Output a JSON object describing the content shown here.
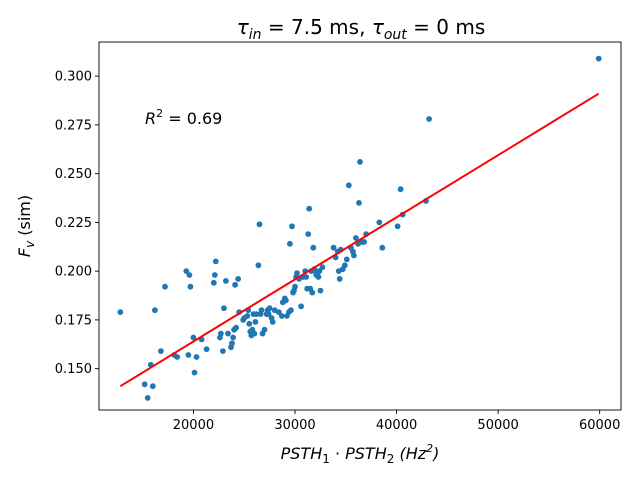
{
  "chart_data": {
    "type": "scatter",
    "title": {
      "prefix": "τ",
      "sub1": "in",
      "mid": " = 7.5 ms, ",
      "prefix2": "τ",
      "sub2": "out",
      "suffix": " = 0 ms"
    },
    "xlabel": {
      "a": "PSTH",
      "a_sub": "1",
      "dot": " · ",
      "b": "PSTH",
      "b_sub": "2",
      "unit_open": " (Hz",
      "unit_sup": "2",
      "unit_close": ")"
    },
    "ylabel": {
      "main": "F",
      "sub": "v",
      "rest": " (sim)"
    },
    "annotation": {
      "main": "R",
      "sup": "2",
      "rest": " = 0.69"
    },
    "xlim": [
      10700,
      62100
    ],
    "ylim": [
      0.1288,
      0.3175
    ],
    "xticks": [
      20000,
      30000,
      40000,
      50000,
      60000
    ],
    "yticks": [
      0.15,
      0.175,
      0.2,
      0.225,
      0.25,
      0.275,
      0.3
    ],
    "grid": false,
    "point_color": "#1f77b4",
    "line_color": "#ff0000",
    "fit_line": {
      "x": [
        12800,
        59900
      ],
      "y": [
        0.141,
        0.291
      ]
    },
    "points": [
      [
        12800,
        0.179
      ],
      [
        15200,
        0.142
      ],
      [
        15500,
        0.135
      ],
      [
        15800,
        0.152
      ],
      [
        16000,
        0.141
      ],
      [
        16200,
        0.18
      ],
      [
        16800,
        0.159
      ],
      [
        17200,
        0.192
      ],
      [
        18100,
        0.157
      ],
      [
        18400,
        0.156
      ],
      [
        19300,
        0.2
      ],
      [
        19500,
        0.157
      ],
      [
        19600,
        0.198
      ],
      [
        19700,
        0.192
      ],
      [
        20000,
        0.166
      ],
      [
        20100,
        0.148
      ],
      [
        20300,
        0.156
      ],
      [
        20800,
        0.165
      ],
      [
        21300,
        0.16
      ],
      [
        22000,
        0.194
      ],
      [
        22100,
        0.198
      ],
      [
        22200,
        0.205
      ],
      [
        22600,
        0.166
      ],
      [
        22700,
        0.168
      ],
      [
        22900,
        0.159
      ],
      [
        23000,
        0.181
      ],
      [
        23200,
        0.195
      ],
      [
        23400,
        0.168
      ],
      [
        23700,
        0.161
      ],
      [
        23800,
        0.163
      ],
      [
        23900,
        0.166
      ],
      [
        24000,
        0.17
      ],
      [
        24100,
        0.193
      ],
      [
        24200,
        0.171
      ],
      [
        24400,
        0.196
      ],
      [
        24500,
        0.179
      ],
      [
        24900,
        0.175
      ],
      [
        25000,
        0.176
      ],
      [
        25300,
        0.177
      ],
      [
        25400,
        0.18
      ],
      [
        25500,
        0.173
      ],
      [
        25600,
        0.169
      ],
      [
        25700,
        0.167
      ],
      [
        25800,
        0.17
      ],
      [
        25900,
        0.178
      ],
      [
        26000,
        0.168
      ],
      [
        26100,
        0.174
      ],
      [
        26200,
        0.178
      ],
      [
        26400,
        0.203
      ],
      [
        26500,
        0.224
      ],
      [
        26600,
        0.178
      ],
      [
        26700,
        0.18
      ],
      [
        26800,
        0.168
      ],
      [
        27000,
        0.17
      ],
      [
        27200,
        0.178
      ],
      [
        27300,
        0.18
      ],
      [
        27400,
        0.178
      ],
      [
        27500,
        0.181
      ],
      [
        27700,
        0.176
      ],
      [
        27800,
        0.174
      ],
      [
        28000,
        0.18
      ],
      [
        28400,
        0.179
      ],
      [
        28700,
        0.177
      ],
      [
        28800,
        0.184
      ],
      [
        29000,
        0.186
      ],
      [
        29100,
        0.185
      ],
      [
        29200,
        0.177
      ],
      [
        29400,
        0.179
      ],
      [
        29500,
        0.214
      ],
      [
        29600,
        0.18
      ],
      [
        29700,
        0.223
      ],
      [
        29800,
        0.189
      ],
      [
        29900,
        0.19
      ],
      [
        30000,
        0.192
      ],
      [
        30100,
        0.197
      ],
      [
        30200,
        0.199
      ],
      [
        30400,
        0.196
      ],
      [
        30600,
        0.182
      ],
      [
        30800,
        0.197
      ],
      [
        31000,
        0.2
      ],
      [
        31100,
        0.197
      ],
      [
        31200,
        0.191
      ],
      [
        31300,
        0.219
      ],
      [
        31400,
        0.232
      ],
      [
        31500,
        0.191
      ],
      [
        31600,
        0.2
      ],
      [
        31700,
        0.189
      ],
      [
        31800,
        0.212
      ],
      [
        31900,
        0.201
      ],
      [
        32000,
        0.2
      ],
      [
        32100,
        0.198
      ],
      [
        32200,
        0.198
      ],
      [
        32300,
        0.197
      ],
      [
        32400,
        0.2
      ],
      [
        32500,
        0.19
      ],
      [
        32700,
        0.202
      ],
      [
        33800,
        0.212
      ],
      [
        34000,
        0.207
      ],
      [
        34200,
        0.21
      ],
      [
        34300,
        0.2
      ],
      [
        34400,
        0.196
      ],
      [
        34500,
        0.211
      ],
      [
        34700,
        0.201
      ],
      [
        34900,
        0.203
      ],
      [
        35100,
        0.206
      ],
      [
        35300,
        0.244
      ],
      [
        35500,
        0.212
      ],
      [
        35700,
        0.21
      ],
      [
        35800,
        0.208
      ],
      [
        36000,
        0.217
      ],
      [
        36200,
        0.214
      ],
      [
        36300,
        0.235
      ],
      [
        36400,
        0.256
      ],
      [
        36600,
        0.215
      ],
      [
        36800,
        0.215
      ],
      [
        37000,
        0.219
      ],
      [
        38300,
        0.225
      ],
      [
        38600,
        0.212
      ],
      [
        40100,
        0.223
      ],
      [
        40400,
        0.242
      ],
      [
        40600,
        0.229
      ],
      [
        42900,
        0.236
      ],
      [
        43200,
        0.278
      ],
      [
        59900,
        0.309
      ]
    ]
  }
}
